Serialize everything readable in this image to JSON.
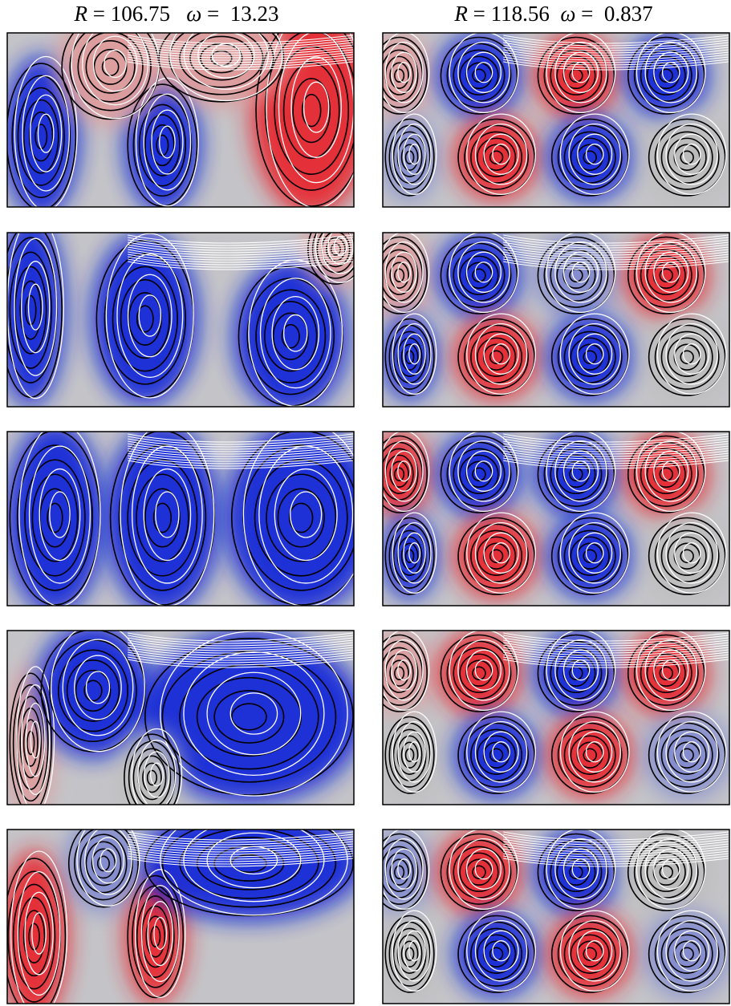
{
  "columns": [
    {
      "title": [
        {
          "text": "R",
          "italic": true
        },
        {
          "text": " = 106.75   "
        },
        {
          "text": "ω",
          "italic": true
        },
        {
          "text": " =  13.23"
        }
      ]
    },
    {
      "title": [
        {
          "text": "R",
          "italic": true
        },
        {
          "text": " = 118.56  "
        },
        {
          "text": "ω",
          "italic": true
        },
        {
          "text": " =  0.837"
        }
      ]
    }
  ]
}
